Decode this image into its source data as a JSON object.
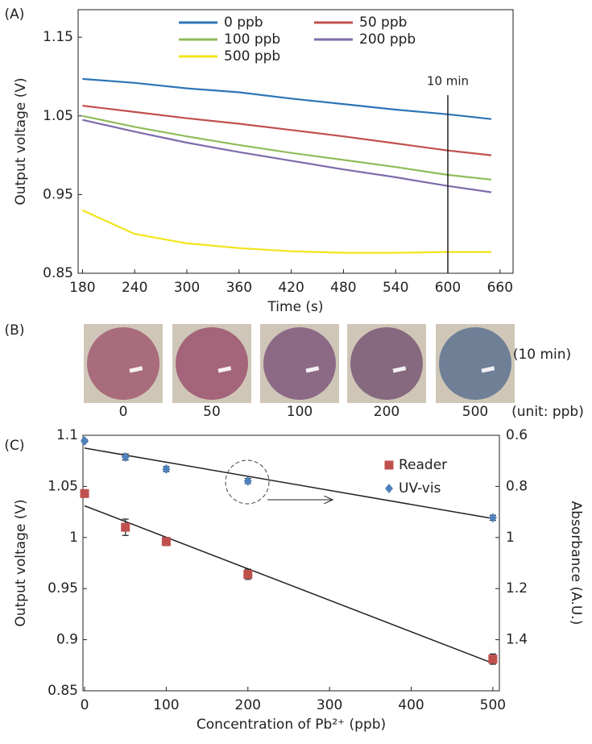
{
  "chart_data": [
    {
      "type": "line",
      "panel": "(A)",
      "xlabel": "Time (s)",
      "ylabel": "Output voltage (V)",
      "x": [
        180,
        240,
        300,
        360,
        420,
        480,
        540,
        600,
        650
      ],
      "series": [
        {
          "name": "0 ppb",
          "color": "#2e75b6",
          "values": [
            1.097,
            1.092,
            1.085,
            1.08,
            1.072,
            1.065,
            1.058,
            1.052,
            1.046
          ]
        },
        {
          "name": "50 ppb",
          "color": "#c0504d",
          "values": [
            1.063,
            1.055,
            1.047,
            1.04,
            1.032,
            1.024,
            1.015,
            1.006,
            1.0
          ]
        },
        {
          "name": "100 ppb",
          "color": "#8fbc5a",
          "values": [
            1.05,
            1.036,
            1.024,
            1.013,
            1.003,
            0.994,
            0.985,
            0.975,
            0.969
          ]
        },
        {
          "name": "200 ppb",
          "color": "#7e6bab",
          "values": [
            1.045,
            1.03,
            1.016,
            1.004,
            0.993,
            0.982,
            0.972,
            0.961,
            0.953
          ]
        },
        {
          "name": "500 ppb",
          "color": "#f2e41a",
          "values": [
            0.93,
            0.9,
            0.888,
            0.882,
            0.878,
            0.876,
            0.876,
            0.877,
            0.877
          ]
        }
      ],
      "xlim": [
        175,
        675
      ],
      "xticks": [
        180,
        240,
        300,
        360,
        420,
        480,
        540,
        600,
        660
      ],
      "ylim": [
        0.85,
        1.185
      ],
      "yticks": [
        0.85,
        0.95,
        1.05,
        1.15
      ],
      "vline": {
        "x": 600,
        "label": "10 min"
      }
    },
    {
      "type": "scatter",
      "panel": "(C)",
      "xlabel": "Concentration of Pb²⁺ (ppb)",
      "ylabel": "Output voltage (V)",
      "y2label": "Absorbance (A.U.)",
      "series": [
        {
          "name": "Reader",
          "color": "#c0504d",
          "marker": "square",
          "x": [
            0,
            50,
            100,
            200,
            500
          ],
          "values": [
            1.043,
            1.01,
            0.996,
            0.964,
            0.881
          ],
          "errors": [
            0.002,
            0.008,
            0.004,
            0.005,
            0.005
          ],
          "fit": {
            "x": [
              0,
              500
            ],
            "y": [
              1.031,
              0.877
            ]
          }
        },
        {
          "name": "UV-vis",
          "color": "#4f81bd",
          "marker": "diamond",
          "axis": "y2",
          "x": [
            0,
            50,
            100,
            200,
            500
          ],
          "values": [
            0.622,
            0.685,
            0.732,
            0.779,
            0.923
          ],
          "errors": [
            0.005,
            0.012,
            0.01,
            0.01,
            0.01
          ],
          "fit": {
            "x": [
              0,
              500
            ],
            "y": [
              0.65,
              0.926
            ]
          }
        }
      ],
      "xlim": [
        -2,
        508
      ],
      "xticks": [
        0,
        100,
        200,
        300,
        400,
        500
      ],
      "ylim": [
        0.85,
        1.1
      ],
      "yticks": [
        0.85,
        0.9,
        0.95,
        1,
        1.05,
        1.1
      ],
      "y2lim": [
        0.6,
        1.6
      ],
      "y2_inverted": true,
      "y2ticks": [
        0.6,
        0.8,
        1,
        1.2,
        1.4
      ]
    }
  ],
  "photos": {
    "panel": "(B)",
    "labels": [
      "0",
      "50",
      "100",
      "200",
      "500"
    ],
    "colors": [
      "#a86c7c",
      "#a4647a",
      "#8c6a86",
      "#86697e",
      "#6e7f96"
    ],
    "time_note": "(10 min)",
    "unit_note": "(unit: ppb)"
  }
}
